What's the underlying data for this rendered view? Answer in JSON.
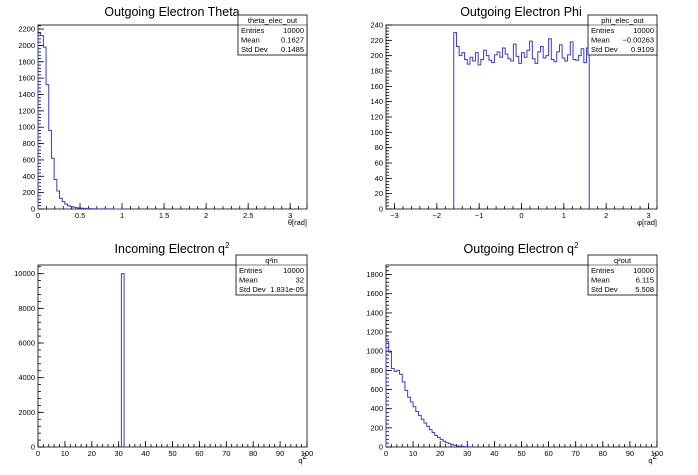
{
  "chart_data": [
    {
      "type": "histogram",
      "title": "Outgoing Electron Theta",
      "title_sup": "",
      "xlabel": "θ[rad]",
      "xlim": [
        0,
        3.2
      ],
      "ylim": [
        0,
        2250
      ],
      "xticks": [
        0,
        0.5,
        1,
        1.5,
        2,
        2.5,
        3
      ],
      "xtick_labels": [
        "0",
        "0.5",
        "1",
        "1.5",
        "2",
        "2.5",
        "3"
      ],
      "yticks": [
        0,
        200,
        400,
        600,
        800,
        1000,
        1200,
        1400,
        1600,
        1800,
        2000,
        2200
      ],
      "stats": {
        "name": "theta_elec_out",
        "entries": "10000",
        "mean": "0.1627",
        "std_dev": "0.1485"
      },
      "bin_edges_start": 0,
      "bin_width": 0.032,
      "counts": [
        2150,
        2120,
        1980,
        1520,
        960,
        620,
        360,
        220,
        130,
        90,
        60,
        40,
        30,
        22,
        15,
        12,
        9,
        7,
        5,
        4,
        3,
        3,
        2,
        2,
        1,
        1,
        1,
        1,
        0,
        0,
        0,
        0
      ]
    },
    {
      "type": "histogram",
      "title": "Outgoing Electron Phi",
      "title_sup": "",
      "xlabel": "φ[rad]",
      "xlim": [
        -3.2,
        3.2
      ],
      "ylim": [
        0,
        240
      ],
      "xticks": [
        -3,
        -2,
        -1,
        0,
        1,
        2,
        3
      ],
      "xtick_labels": [
        "−3",
        "−2",
        "−1",
        "0",
        "1",
        "2",
        "3"
      ],
      "yticks": [
        0,
        20,
        40,
        60,
        80,
        100,
        120,
        140,
        160,
        180,
        200,
        220,
        240
      ],
      "stats": {
        "name": "phi_elec_out",
        "entries": "10000",
        "mean": "−0.00263",
        "std_dev": "0.9109"
      },
      "bin_edges_start": -1.6,
      "bin_width": 0.064,
      "counts": [
        230,
        212,
        200,
        204,
        195,
        189,
        198,
        193,
        204,
        188,
        195,
        207,
        200,
        194,
        191,
        201,
        205,
        198,
        210,
        202,
        196,
        193,
        215,
        199,
        190,
        204,
        198,
        207,
        219,
        196,
        190,
        205,
        212,
        197,
        200,
        222,
        195,
        192,
        205,
        214,
        197,
        193,
        201,
        218,
        195,
        194,
        200,
        209,
        191,
        210
      ]
    },
    {
      "type": "histogram",
      "title": "Incoming Electron q",
      "title_sup": "2",
      "xlabel": "q",
      "xlim": [
        0,
        100
      ],
      "ylim": [
        0,
        10500
      ],
      "xticks": [
        0,
        10,
        20,
        30,
        40,
        50,
        60,
        70,
        80,
        90,
        100
      ],
      "xtick_labels": [
        "0",
        "10",
        "20",
        "30",
        "40",
        "50",
        "60",
        "70",
        "80",
        "90",
        "100"
      ],
      "yticks": [
        0,
        2000,
        4000,
        6000,
        8000,
        10000
      ],
      "stats": {
        "name": "q²in",
        "entries": "10000",
        "mean": "32",
        "std_dev": "1.831e-05"
      },
      "bin_edges_start": 31,
      "bin_width": 1,
      "counts": [
        10000
      ]
    },
    {
      "type": "histogram",
      "title": "Outgoing Electron q",
      "title_sup": "2",
      "xlabel": "q",
      "xlim": [
        0,
        100
      ],
      "ylim": [
        0,
        1900
      ],
      "xticks": [
        0,
        10,
        20,
        30,
        40,
        50,
        60,
        70,
        80,
        90,
        100
      ],
      "xtick_labels": [
        "0",
        "10",
        "20",
        "30",
        "40",
        "50",
        "60",
        "70",
        "80",
        "90",
        "100"
      ],
      "yticks": [
        0,
        200,
        400,
        600,
        800,
        1000,
        1200,
        1400,
        1600,
        1800
      ],
      "stats": {
        "name": "q²out",
        "entries": "10000",
        "mean": "6.115",
        "std_dev": "5.508"
      },
      "bin_edges_start": 0,
      "bin_width": 1,
      "counts": [
        1100,
        990,
        820,
        790,
        800,
        760,
        680,
        590,
        520,
        470,
        420,
        370,
        330,
        290,
        250,
        215,
        180,
        150,
        120,
        100,
        80,
        60,
        45,
        35,
        25,
        18,
        12,
        8,
        5,
        3,
        2,
        1
      ]
    }
  ]
}
